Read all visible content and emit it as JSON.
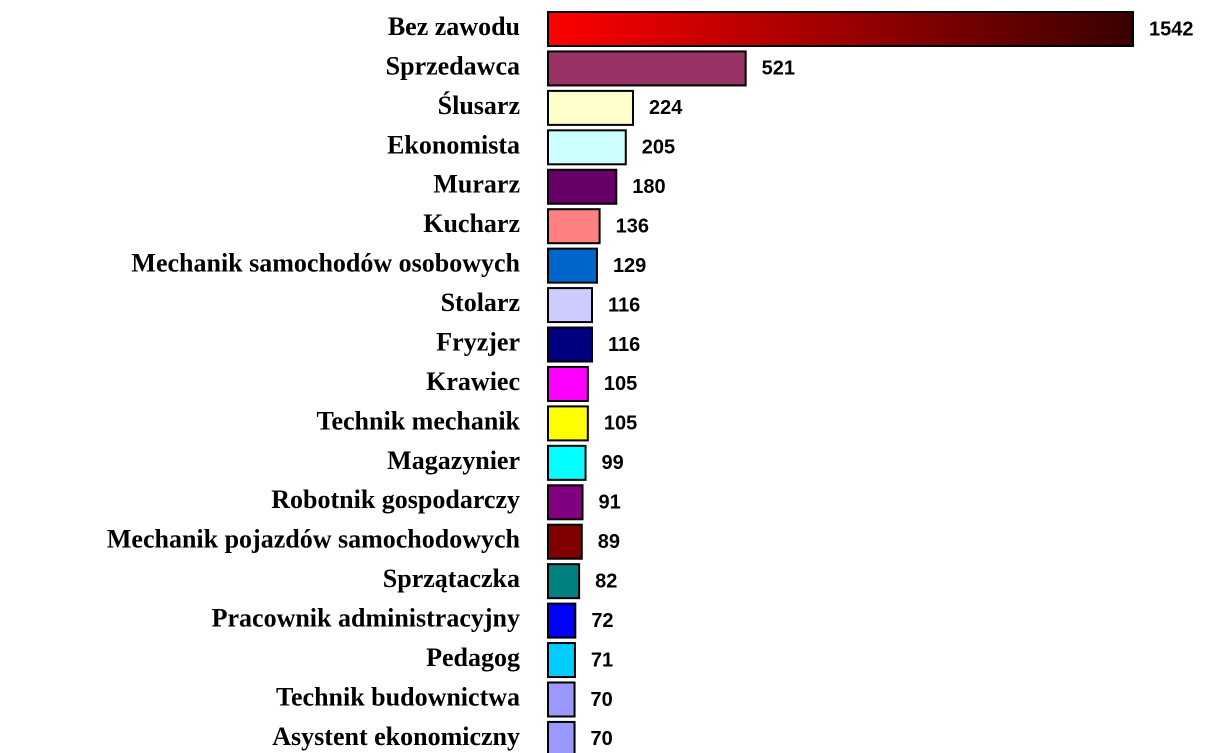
{
  "chart_data": {
    "type": "hbar",
    "categories": [
      "Bez zawodu",
      "Sprzedawca",
      "Ślusarz",
      "Ekonomista",
      "Murarz",
      "Kucharz",
      "Mechanik samochodów osobowych",
      "Stolarz",
      "Fryzjer",
      "Krawiec",
      "Technik mechanik",
      "Magazynier",
      "Robotnik gospodarczy",
      "Mechanik pojazdów samochodowych",
      "Sprzątaczka",
      "Pracownik administracyjny",
      "Pedagog",
      "Technik budownictwa",
      "Asystent ekonomiczny"
    ],
    "values": [
      1542,
      521,
      224,
      205,
      180,
      136,
      129,
      116,
      116,
      105,
      105,
      99,
      91,
      89,
      82,
      72,
      71,
      70,
      70
    ],
    "colors": [
      "#ff0000",
      "#993366",
      "#ffffcc",
      "#ccffff",
      "#660066",
      "#ff8080",
      "#0066cc",
      "#ccccff",
      "#000080",
      "#ff00ff",
      "#ffff00",
      "#00ffff",
      "#800080",
      "#800000",
      "#008080",
      "#0000ff",
      "#00ccff",
      "#9999ff",
      "#9999ff"
    ],
    "gradient": {
      "index": 0,
      "from": "#ff0000",
      "to": "#3a0000"
    }
  }
}
